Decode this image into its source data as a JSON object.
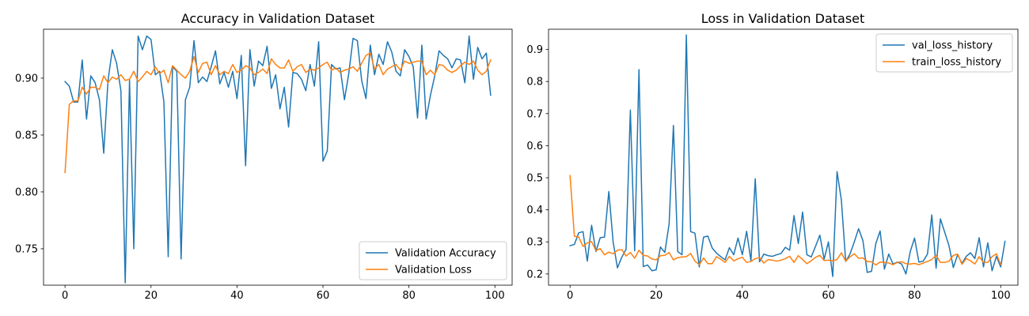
{
  "chart_data": [
    {
      "type": "line",
      "title": "Accuracy in Validation Dataset",
      "xlabel": "",
      "ylabel": "",
      "xlim": [
        -5,
        104
      ],
      "ylim": [
        0.718,
        0.943
      ],
      "xticks": [
        0,
        20,
        40,
        60,
        80,
        100
      ],
      "yticks": [
        0.75,
        0.8,
        0.85,
        0.9
      ],
      "ytick_labels": [
        "0.75",
        "0.80",
        "0.85",
        "0.90"
      ],
      "grid": false,
      "legend_position": "lower-right",
      "series": [
        {
          "name": "Validation Accuracy",
          "color": "#1f77b4",
          "values": [
            0.897,
            0.893,
            0.879,
            0.879,
            0.916,
            0.864,
            0.902,
            0.896,
            0.881,
            0.834,
            0.898,
            0.925,
            0.913,
            0.889,
            0.72,
            0.898,
            0.75,
            0.937,
            0.925,
            0.937,
            0.934,
            0.903,
            0.906,
            0.879,
            0.743,
            0.91,
            0.906,
            0.741,
            0.881,
            0.892,
            0.933,
            0.896,
            0.901,
            0.897,
            0.91,
            0.924,
            0.895,
            0.905,
            0.892,
            0.906,
            0.882,
            0.92,
            0.823,
            0.925,
            0.893,
            0.915,
            0.911,
            0.928,
            0.891,
            0.903,
            0.873,
            0.892,
            0.857,
            0.905,
            0.904,
            0.899,
            0.889,
            0.912,
            0.893,
            0.932,
            0.827,
            0.836,
            0.912,
            0.908,
            0.909,
            0.881,
            0.904,
            0.935,
            0.933,
            0.898,
            0.882,
            0.929,
            0.903,
            0.921,
            0.912,
            0.932,
            0.923,
            0.906,
            0.902,
            0.925,
            0.919,
            0.91,
            0.865,
            0.929,
            0.864,
            0.885,
            0.902,
            0.924,
            0.92,
            0.917,
            0.909,
            0.917,
            0.916,
            0.896,
            0.937,
            0.899,
            0.927,
            0.917,
            0.922,
            0.885
          ]
        },
        {
          "name": "Validation Loss",
          "color": "#ff7f0e",
          "values": [
            0.817,
            0.877,
            0.88,
            0.88,
            0.892,
            0.886,
            0.892,
            0.892,
            0.89,
            0.902,
            0.896,
            0.901,
            0.899,
            0.903,
            0.898,
            0.899,
            0.906,
            0.897,
            0.901,
            0.906,
            0.903,
            0.91,
            0.904,
            0.907,
            0.896,
            0.911,
            0.907,
            0.903,
            0.9,
            0.906,
            0.919,
            0.905,
            0.913,
            0.914,
            0.903,
            0.911,
            0.903,
            0.906,
            0.904,
            0.912,
            0.905,
            0.907,
            0.911,
            0.909,
            0.903,
            0.905,
            0.908,
            0.904,
            0.917,
            0.912,
            0.909,
            0.909,
            0.916,
            0.906,
            0.91,
            0.912,
            0.905,
            0.908,
            0.907,
            0.909,
            0.912,
            0.914,
            0.907,
            0.909,
            0.905,
            0.907,
            0.908,
            0.91,
            0.906,
            0.913,
            0.92,
            0.922,
            0.908,
            0.912,
            0.903,
            0.908,
            0.91,
            0.912,
            0.907,
            0.915,
            0.913,
            0.914,
            0.915,
            0.915,
            0.903,
            0.907,
            0.903,
            0.912,
            0.911,
            0.907,
            0.905,
            0.907,
            0.911,
            0.914,
            0.912,
            0.915,
            0.907,
            0.903,
            0.906,
            0.916
          ]
        }
      ]
    },
    {
      "type": "line",
      "title": "Loss in Validation Dataset",
      "xlabel": "",
      "ylabel": "",
      "xlim": [
        -5,
        104
      ],
      "ylim": [
        0.165,
        0.963
      ],
      "xticks": [
        0,
        20,
        40,
        60,
        80,
        100
      ],
      "yticks": [
        0.2,
        0.3,
        0.4,
        0.5,
        0.6,
        0.7,
        0.8,
        0.9
      ],
      "ytick_labels": [
        "0.2",
        "0.3",
        "0.4",
        "0.5",
        "0.6",
        "0.7",
        "0.8",
        "0.9"
      ],
      "grid": false,
      "legend_position": "upper-right",
      "series": [
        {
          "name": "val_loss_history",
          "color": "#1f77b4",
          "values": [
            0.288,
            0.292,
            0.328,
            0.332,
            0.24,
            0.352,
            0.27,
            0.313,
            0.315,
            0.457,
            0.3,
            0.219,
            0.252,
            0.277,
            0.711,
            0.272,
            0.837,
            0.223,
            0.228,
            0.21,
            0.213,
            0.284,
            0.267,
            0.356,
            0.663,
            0.27,
            0.26,
            0.945,
            0.332,
            0.327,
            0.222,
            0.315,
            0.318,
            0.281,
            0.265,
            0.254,
            0.244,
            0.282,
            0.26,
            0.312,
            0.26,
            0.333,
            0.241,
            0.497,
            0.238,
            0.262,
            0.257,
            0.255,
            0.26,
            0.264,
            0.283,
            0.274,
            0.382,
            0.295,
            0.393,
            0.26,
            0.253,
            0.286,
            0.321,
            0.246,
            0.3,
            0.192,
            0.519,
            0.431,
            0.239,
            0.262,
            0.3,
            0.341,
            0.304,
            0.205,
            0.208,
            0.295,
            0.334,
            0.215,
            0.262,
            0.231,
            0.237,
            0.231,
            0.2,
            0.27,
            0.312,
            0.237,
            0.24,
            0.262,
            0.384,
            0.218,
            0.372,
            0.33,
            0.288,
            0.22,
            0.26,
            0.233,
            0.255,
            0.266,
            0.248,
            0.313,
            0.222,
            0.297,
            0.21,
            0.255,
            0.222,
            0.302
          ]
        },
        {
          "name": "train_loss_history",
          "color": "#ff7f0e",
          "values": [
            0.507,
            0.318,
            0.315,
            0.286,
            0.297,
            0.301,
            0.273,
            0.279,
            0.26,
            0.268,
            0.263,
            0.274,
            0.276,
            0.256,
            0.267,
            0.249,
            0.274,
            0.258,
            0.256,
            0.247,
            0.244,
            0.257,
            0.258,
            0.267,
            0.244,
            0.251,
            0.253,
            0.254,
            0.264,
            0.24,
            0.229,
            0.25,
            0.232,
            0.232,
            0.254,
            0.246,
            0.236,
            0.255,
            0.241,
            0.247,
            0.252,
            0.236,
            0.239,
            0.248,
            0.251,
            0.234,
            0.245,
            0.243,
            0.24,
            0.243,
            0.248,
            0.255,
            0.236,
            0.257,
            0.245,
            0.232,
            0.241,
            0.252,
            0.258,
            0.242,
            0.243,
            0.241,
            0.245,
            0.266,
            0.24,
            0.253,
            0.263,
            0.249,
            0.25,
            0.239,
            0.238,
            0.228,
            0.237,
            0.236,
            0.234,
            0.229,
            0.236,
            0.238,
            0.232,
            0.231,
            0.233,
            0.229,
            0.234,
            0.239,
            0.245,
            0.258,
            0.236,
            0.236,
            0.24,
            0.258,
            0.262,
            0.23,
            0.248,
            0.241,
            0.231,
            0.254,
            0.236,
            0.236,
            0.254,
            0.263,
            0.229
          ]
        }
      ]
    }
  ]
}
